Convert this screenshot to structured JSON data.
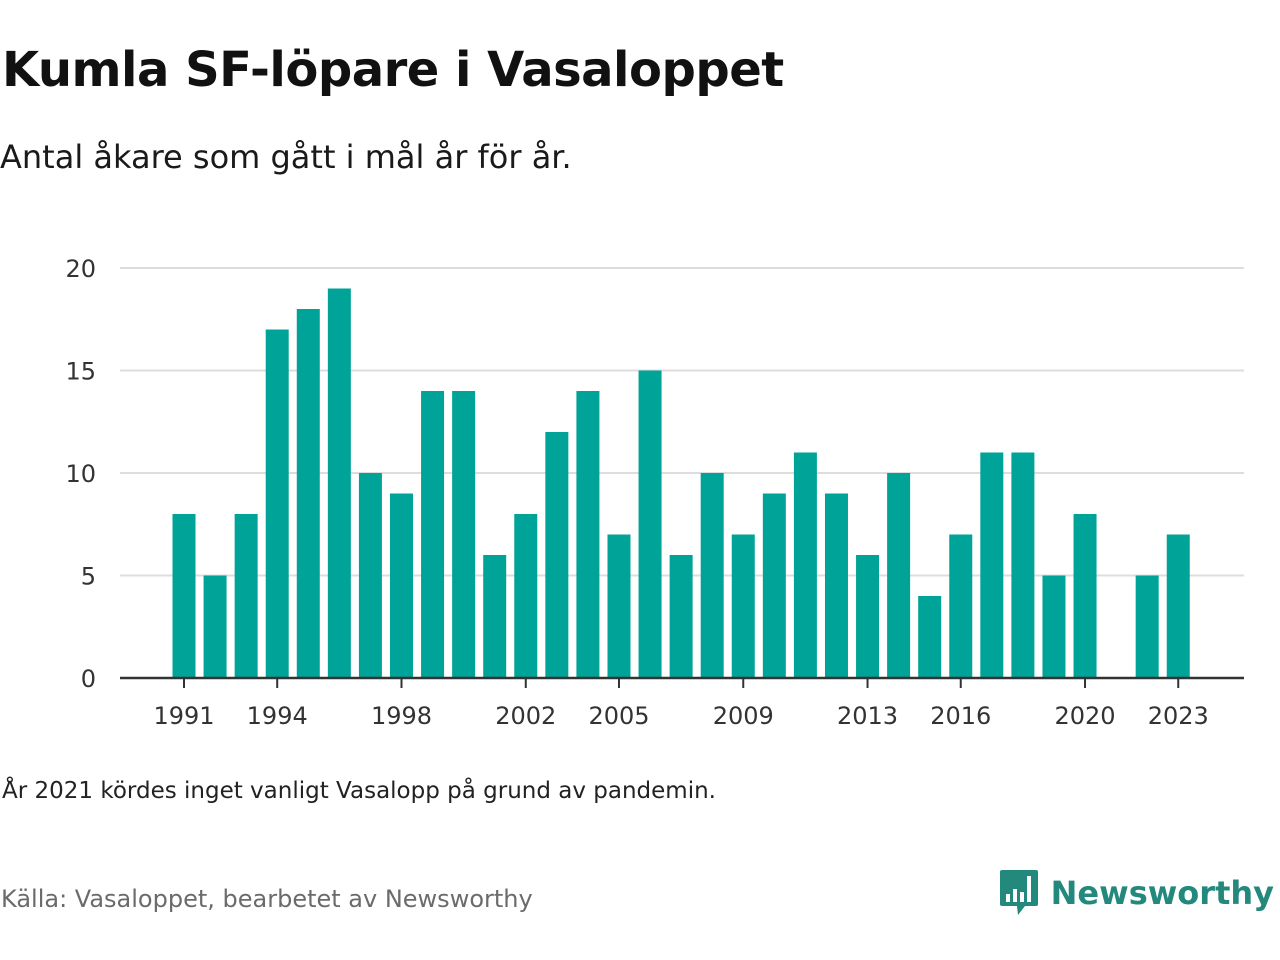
{
  "title": "Kumla SF-löpare i Vasaloppet",
  "subtitle": "Antal åkare som gått i mål år för år.",
  "note": "År 2021 kördes inget vanligt Vasalopp på grund av pandemin.",
  "source": "Källa: Vasaloppet, bearbetet av Newsworthy",
  "brand": {
    "name": "Newsworthy",
    "logo_icon": "bar-chart-speech-bubble-icon",
    "color": "#22897c"
  },
  "colors": {
    "bar": "#00a398",
    "grid": "#dddddd",
    "axis": "#333333"
  },
  "chart_data": {
    "type": "bar",
    "title": "Kumla SF-löpare i Vasaloppet",
    "subtitle": "Antal åkare som gått i mål år för år.",
    "categories": [
      1991,
      1992,
      1993,
      1994,
      1995,
      1996,
      1997,
      1998,
      1999,
      2000,
      2001,
      2002,
      2003,
      2004,
      2005,
      2006,
      2007,
      2008,
      2009,
      2010,
      2011,
      2012,
      2013,
      2014,
      2015,
      2016,
      2017,
      2018,
      2019,
      2020,
      2021,
      2022,
      2023
    ],
    "values": [
      8,
      5,
      8,
      17,
      18,
      19,
      10,
      9,
      14,
      14,
      6,
      8,
      12,
      14,
      7,
      15,
      6,
      10,
      7,
      9,
      11,
      9,
      6,
      10,
      4,
      7,
      11,
      11,
      5,
      8,
      null,
      5,
      7
    ],
    "x_tick_labels": [
      "1991",
      "1994",
      "1998",
      "2002",
      "2005",
      "2009",
      "2013",
      "2016",
      "2020",
      "2023"
    ],
    "y_ticks": [
      0,
      5,
      10,
      15,
      20
    ],
    "ylim": [
      0,
      20
    ],
    "xlabel": "",
    "ylabel": "",
    "grid": true,
    "legend": "none"
  }
}
